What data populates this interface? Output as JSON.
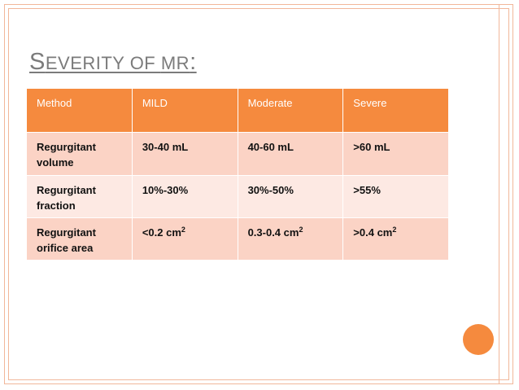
{
  "slide": {
    "title_first_letter_1": "S",
    "title_rest_1": "EVERITY OF ",
    "title_rest_2": "MR",
    "title_suffix": ":"
  },
  "table": {
    "headers": [
      "Method",
      "MILD",
      "Moderate",
      "Severe"
    ],
    "rows": [
      {
        "method_line1": "Regurgitant",
        "method_line2": "volume",
        "mild": "30-40 mL",
        "moderate": "40-60 mL",
        "severe": ">60 mL"
      },
      {
        "method_line1": "Regurgitant",
        "method_line2": "fraction",
        "mild": "10%-30%",
        "moderate": "30%-50%",
        "severe": ">55%"
      },
      {
        "method_line1": "Regurgitant",
        "method_line2": "orifice area",
        "mild": "<0.2 cm",
        "mild_sup": "2",
        "moderate": "0.3-0.4 cm",
        "moderate_sup": "2",
        "severe": ">0.4 cm",
        "severe_sup": "2"
      }
    ]
  },
  "colors": {
    "accent": "#f58a3e",
    "row_dark": "#fbd3c5",
    "row_light": "#fde9e3",
    "title": "#7b7b7b",
    "frame": "#f1b79a"
  }
}
